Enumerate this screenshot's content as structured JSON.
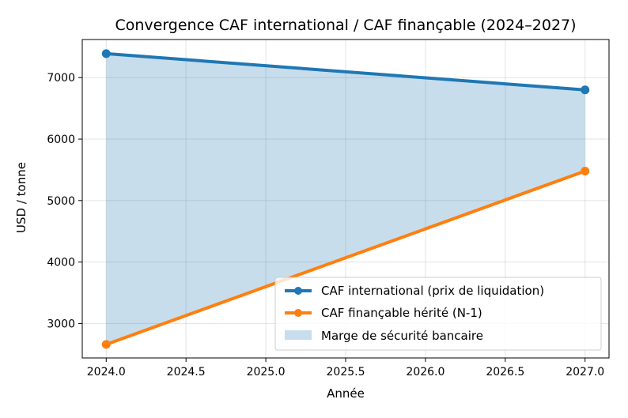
{
  "chart_data": {
    "type": "line",
    "title": "Convergence CAF international / CAF finançable (2024–2027)",
    "xlabel": "Année",
    "ylabel": "USD / tonne",
    "xlim": [
      2023.85,
      2027.15
    ],
    "ylim": [
      2440,
      7620
    ],
    "xticks": [
      2024.0,
      2024.5,
      2025.0,
      2025.5,
      2026.0,
      2026.5,
      2027.0
    ],
    "xtick_labels": [
      "2024.0",
      "2024.5",
      "2025.0",
      "2025.5",
      "2026.0",
      "2026.5",
      "2027.0"
    ],
    "yticks": [
      3000,
      4000,
      5000,
      6000,
      7000
    ],
    "ytick_labels": [
      "3000",
      "4000",
      "5000",
      "6000",
      "7000"
    ],
    "grid": true,
    "legend_position": "lower-right",
    "series": [
      {
        "name": "CAF international (prix de liquidation)",
        "x": [
          2024,
          2027
        ],
        "values": [
          7390,
          6800
        ],
        "color": "#1f77b4"
      },
      {
        "name": "CAF finançable hérité (N-1)",
        "x": [
          2024,
          2027
        ],
        "values": [
          2660,
          5480
        ],
        "color": "#ff7f0e"
      }
    ],
    "fill": {
      "name": "Marge de sécurité bancaire",
      "between": [
        0,
        1
      ],
      "color": "#1f77b4",
      "opacity": 0.25
    }
  }
}
